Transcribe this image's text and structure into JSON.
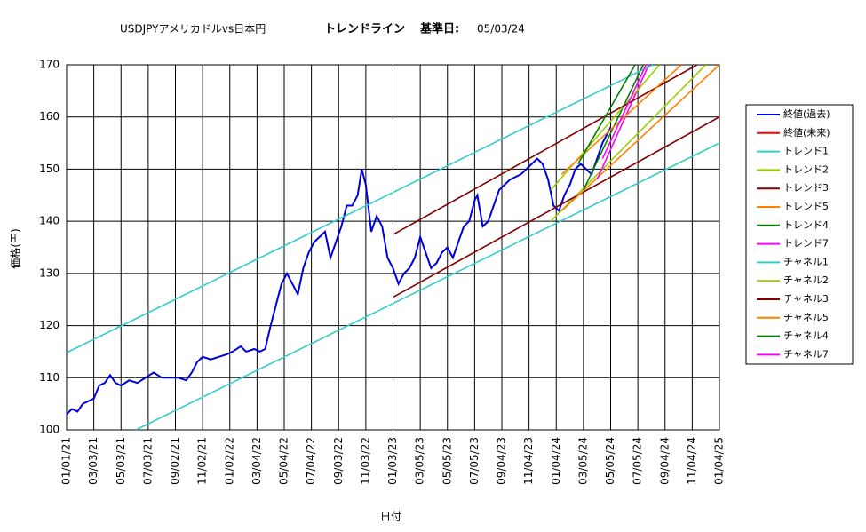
{
  "chart_data": {
    "type": "line",
    "title": "USDJPYアメリカドルvs日本円",
    "subtitle": "トレンドライン",
    "base_date_label": "基準日:",
    "base_date": "05/03/24",
    "xlabel": "日付",
    "ylabel": "価格(円)",
    "xlim": [
      0,
      24
    ],
    "xticks": [
      {
        "value": 0,
        "label": "01/01/21"
      },
      {
        "value": 1,
        "label": "03/03/21"
      },
      {
        "value": 2,
        "label": "05/03/21"
      },
      {
        "value": 3,
        "label": "07/03/21"
      },
      {
        "value": 4,
        "label": "09/02/21"
      },
      {
        "value": 5,
        "label": "11/02/21"
      },
      {
        "value": 6,
        "label": "01/02/22"
      },
      {
        "value": 7,
        "label": "03/04/22"
      },
      {
        "value": 8,
        "label": "05/04/22"
      },
      {
        "value": 9,
        "label": "07/04/22"
      },
      {
        "value": 10,
        "label": "09/03/22"
      },
      {
        "value": 11,
        "label": "11/03/22"
      },
      {
        "value": 12,
        "label": "01/03/23"
      },
      {
        "value": 13,
        "label": "03/05/23"
      },
      {
        "value": 14,
        "label": "05/05/23"
      },
      {
        "value": 15,
        "label": "07/05/23"
      },
      {
        "value": 16,
        "label": "09/04/23"
      },
      {
        "value": 17,
        "label": "11/04/23"
      },
      {
        "value": 18,
        "label": "01/04/24"
      },
      {
        "value": 19,
        "label": "03/05/24"
      },
      {
        "value": 20,
        "label": "05/05/24"
      },
      {
        "value": 21,
        "label": "07/05/24"
      },
      {
        "value": 22,
        "label": "09/04/24"
      },
      {
        "value": 23,
        "label": "11/04/24"
      },
      {
        "value": 24,
        "label": "01/04/25"
      }
    ],
    "ylim": [
      100,
      170
    ],
    "yticks": [
      100,
      110,
      120,
      130,
      140,
      150,
      160,
      170
    ],
    "grid": true,
    "legend": "right",
    "series": [
      {
        "name": "終値(過去)",
        "color": "#0000dd",
        "x": [
          0,
          0.2,
          0.4,
          0.6,
          0.8,
          1.0,
          1.2,
          1.4,
          1.6,
          1.8,
          2.0,
          2.3,
          2.6,
          2.9,
          3.2,
          3.5,
          3.8,
          4.1,
          4.4,
          4.6,
          4.8,
          5.0,
          5.3,
          5.6,
          5.9,
          6.1,
          6.4,
          6.6,
          6.9,
          7.1,
          7.3,
          7.5,
          7.7,
          7.9,
          8.1,
          8.3,
          8.5,
          8.7,
          8.9,
          9.1,
          9.3,
          9.5,
          9.7,
          9.9,
          10.1,
          10.3,
          10.5,
          10.7,
          10.85,
          11.0,
          11.2,
          11.4,
          11.6,
          11.8,
          12.0,
          12.2,
          12.4,
          12.6,
          12.8,
          13.0,
          13.2,
          13.4,
          13.6,
          13.8,
          14.0,
          14.2,
          14.4,
          14.6,
          14.8,
          15.0,
          15.1,
          15.3,
          15.5,
          15.7,
          15.9,
          16.1,
          16.3,
          16.5,
          16.7,
          16.9,
          17.1,
          17.3,
          17.5,
          17.7,
          17.9,
          18.1,
          18.3,
          18.5,
          18.7,
          18.9,
          19.1,
          19.3,
          19.5,
          19.7,
          19.9,
          20.0
        ],
        "values": [
          103,
          104,
          103.5,
          105,
          105.5,
          106,
          108.5,
          109,
          110.5,
          109,
          108.5,
          109.5,
          109,
          110,
          111,
          110,
          110,
          110,
          109.5,
          111,
          113,
          114,
          113.5,
          114,
          114.5,
          115,
          116,
          115,
          115.5,
          115,
          115.5,
          120,
          124,
          128,
          130,
          128,
          126,
          131,
          134,
          136,
          137,
          138,
          133,
          136,
          139,
          143,
          143,
          145,
          150,
          147,
          138,
          141,
          139,
          133,
          131,
          128,
          130,
          131,
          133,
          137,
          134,
          131,
          132,
          134,
          135,
          133,
          136,
          139,
          140,
          144,
          145,
          139,
          140,
          143,
          146,
          147,
          148,
          148.5,
          149,
          150,
          151,
          152,
          151,
          148,
          143,
          142,
          145,
          147,
          150,
          151,
          150,
          149,
          152,
          155,
          157,
          158
        ]
      },
      {
        "name": "終値(未来)",
        "color": "#ff0000",
        "x": [],
        "values": []
      },
      {
        "name": "トレンド1",
        "color": "#33cccc",
        "x": [
          2.55,
          24
        ],
        "values": [
          100,
          155
        ]
      },
      {
        "name": "トレンド2",
        "color": "#99cc00",
        "x": [
          17.8,
          23.5
        ],
        "values": [
          140,
          170
        ]
      },
      {
        "name": "トレンド3",
        "color": "#800000",
        "x": [
          12.02,
          24
        ],
        "values": [
          125.5,
          160
        ]
      },
      {
        "name": "トレンド5",
        "color": "#ff8000",
        "x": [
          18.2,
          24
        ],
        "values": [
          142,
          170
        ]
      },
      {
        "name": "トレンド4",
        "color": "#008000",
        "x": [
          19,
          21.2
        ],
        "values": [
          146,
          170
        ]
      },
      {
        "name": "トレンド7",
        "color": "#ff00ff",
        "x": [
          19.5,
          21.4
        ],
        "values": [
          148,
          170
        ]
      },
      {
        "name": "チャネル1",
        "color": "#33cccc",
        "x": [
          0,
          21.55
        ],
        "values": [
          114.8,
          170
        ]
      },
      {
        "name": "チャネル2",
        "color": "#99cc00",
        "x": [
          17.8,
          21.8
        ],
        "values": [
          146,
          170
        ]
      },
      {
        "name": "チャネル3",
        "color": "#800000",
        "x": [
          12.02,
          23.18
        ],
        "values": [
          137.5,
          170
        ]
      },
      {
        "name": "チャネル5",
        "color": "#ff8000",
        "x": [
          18.2,
          22.6
        ],
        "values": [
          149,
          170
        ]
      },
      {
        "name": "チャネル4",
        "color": "#008000",
        "x": [
          18.8,
          20.9
        ],
        "values": [
          151,
          170
        ]
      },
      {
        "name": "チャネル7",
        "color": "#ff00ff",
        "x": [
          19.7,
          21.3
        ],
        "values": [
          152,
          170
        ]
      }
    ]
  }
}
